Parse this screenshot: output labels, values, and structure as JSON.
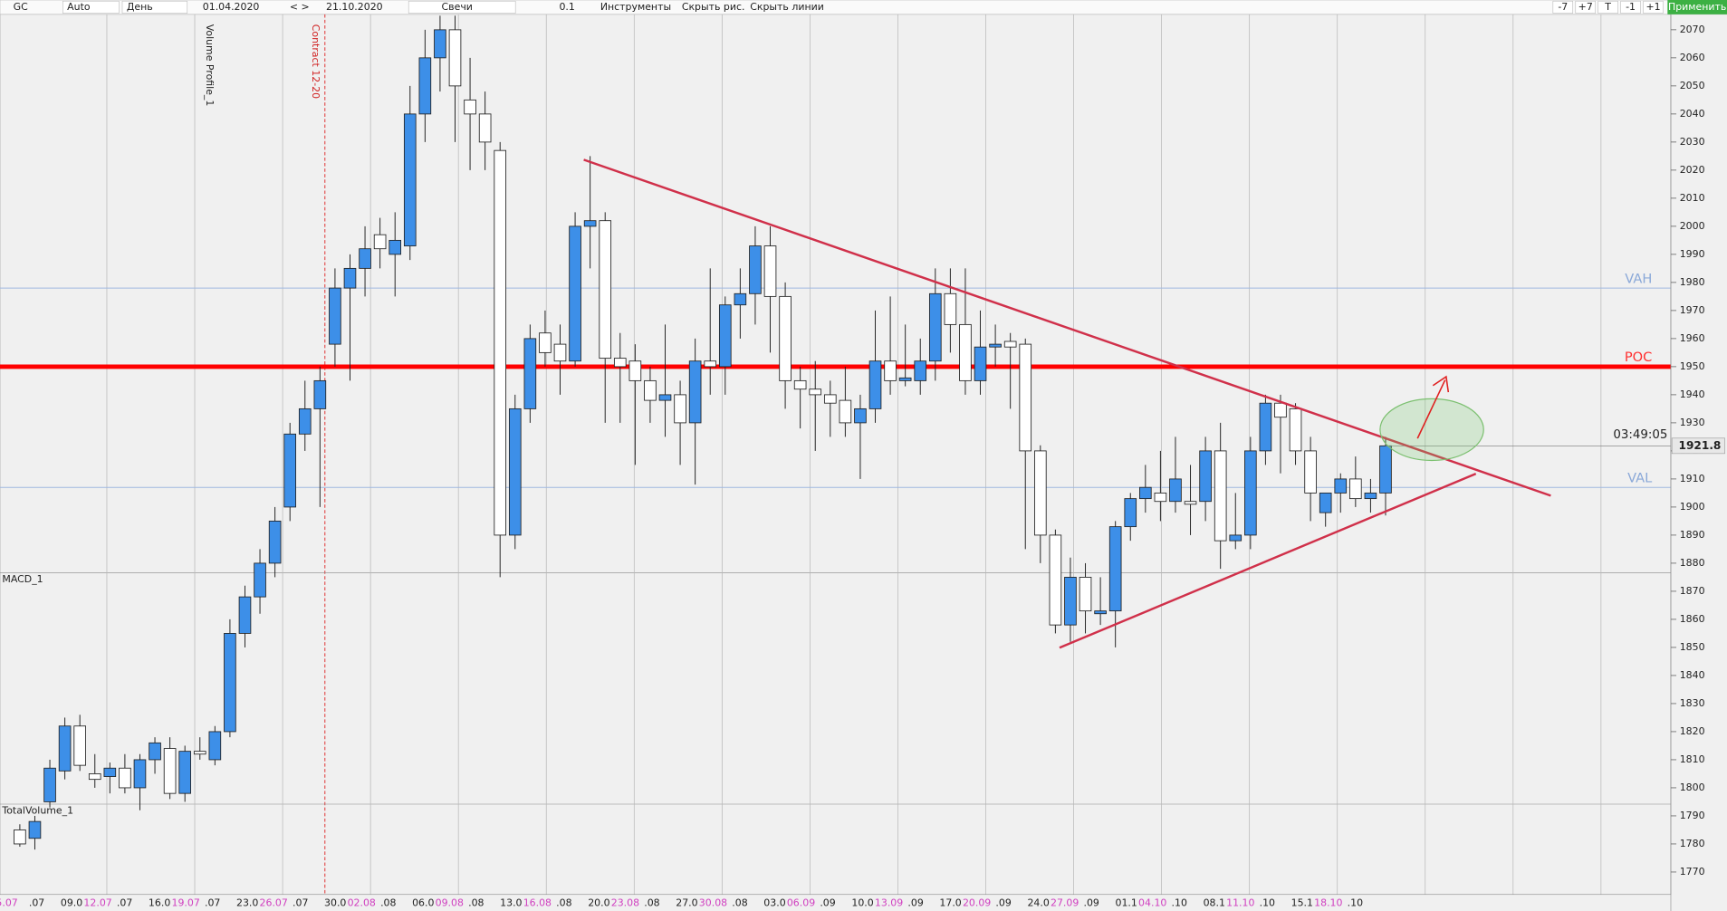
{
  "toolbar": {
    "symbol": "GC",
    "mode": "Auto",
    "period": "День",
    "date_from": "01.04.2020",
    "nav": "< >",
    "date_to": "21.10.2020",
    "chart_type": "Свечи",
    "step": "0.1",
    "tools": "Инструменты",
    "hide_drawings": "Скрыть рис.",
    "hide_lines": "Скрыть линии",
    "buttons": [
      "-7",
      "+7",
      "T",
      "-1",
      "+1"
    ],
    "apply": "Применить"
  },
  "chart_data": {
    "type": "candlestick",
    "candles": [
      [
        1785,
        1787,
        1779,
        1780
      ],
      [
        1782,
        1790,
        1778,
        1788
      ],
      [
        1795,
        1810,
        1793,
        1807
      ],
      [
        1806,
        1825,
        1803,
        1822
      ],
      [
        1822,
        1826,
        1806,
        1808
      ],
      [
        1805,
        1812,
        1800,
        1803
      ],
      [
        1804,
        1809,
        1798,
        1807
      ],
      [
        1807,
        1812,
        1798,
        1800
      ],
      [
        1800,
        1812,
        1792,
        1810
      ],
      [
        1810,
        1818,
        1805,
        1816
      ],
      [
        1814,
        1818,
        1796,
        1798
      ],
      [
        1798,
        1815,
        1795,
        1813
      ],
      [
        1813,
        1818,
        1810,
        1812
      ],
      [
        1810,
        1822,
        1808,
        1820
      ],
      [
        1820,
        1860,
        1818,
        1855
      ],
      [
        1855,
        1872,
        1850,
        1868
      ],
      [
        1868,
        1885,
        1862,
        1880
      ],
      [
        1880,
        1900,
        1875,
        1895
      ],
      [
        1900,
        1930,
        1895,
        1926
      ],
      [
        1926,
        1945,
        1920,
        1935
      ],
      [
        1935,
        1950,
        1900,
        1945
      ],
      [
        1958,
        1985,
        1950,
        1978
      ],
      [
        1978,
        1990,
        1945,
        1985
      ],
      [
        1985,
        2000,
        1975,
        1992
      ],
      [
        1997,
        2003,
        1985,
        1992
      ],
      [
        1990,
        2005,
        1975,
        1995
      ],
      [
        1993,
        2050,
        1988,
        2040
      ],
      [
        2040,
        2070,
        2030,
        2060
      ],
      [
        2060,
        2075,
        2048,
        2070
      ],
      [
        2070,
        2075,
        2030,
        2050
      ],
      [
        2045,
        2060,
        2020,
        2040
      ],
      [
        2040,
        2048,
        2020,
        2030
      ],
      [
        2027,
        2030,
        1875,
        1890
      ],
      [
        1890,
        1940,
        1885,
        1935
      ],
      [
        1935,
        1965,
        1930,
        1960
      ],
      [
        1962,
        1970,
        1950,
        1955
      ],
      [
        1958,
        1965,
        1940,
        1952
      ],
      [
        1952,
        2005,
        1950,
        2000
      ],
      [
        2000,
        2025,
        1985,
        2002
      ],
      [
        2002,
        2005,
        1930,
        1953
      ],
      [
        1953,
        1962,
        1930,
        1950
      ],
      [
        1952,
        1958,
        1915,
        1945
      ],
      [
        1945,
        1950,
        1930,
        1938
      ],
      [
        1938,
        1965,
        1925,
        1940
      ],
      [
        1940,
        1945,
        1915,
        1930
      ],
      [
        1930,
        1960,
        1908,
        1952
      ],
      [
        1952,
        1985,
        1940,
        1950
      ],
      [
        1950,
        1975,
        1940,
        1972
      ],
      [
        1972,
        1985,
        1960,
        1976
      ],
      [
        1976,
        2000,
        1965,
        1993
      ],
      [
        1993,
        2000,
        1955,
        1975
      ],
      [
        1975,
        1980,
        1935,
        1945
      ],
      [
        1945,
        1950,
        1928,
        1942
      ],
      [
        1942,
        1952,
        1920,
        1940
      ],
      [
        1940,
        1945,
        1925,
        1937
      ],
      [
        1938,
        1950,
        1925,
        1930
      ],
      [
        1930,
        1940,
        1910,
        1935
      ],
      [
        1935,
        1970,
        1930,
        1952
      ],
      [
        1952,
        1975,
        1940,
        1945
      ],
      [
        1945,
        1965,
        1943,
        1946
      ],
      [
        1945,
        1960,
        1940,
        1952
      ],
      [
        1952,
        1985,
        1945,
        1976
      ],
      [
        1976,
        1985,
        1955,
        1965
      ],
      [
        1965,
        1985,
        1940,
        1945
      ],
      [
        1945,
        1970,
        1940,
        1957
      ],
      [
        1957,
        1965,
        1950,
        1958
      ],
      [
        1959,
        1962,
        1935,
        1957
      ],
      [
        1958,
        1960,
        1885,
        1920
      ],
      [
        1920,
        1922,
        1880,
        1890
      ],
      [
        1890,
        1892,
        1855,
        1858
      ],
      [
        1858,
        1882,
        1852,
        1875
      ],
      [
        1875,
        1880,
        1855,
        1863
      ],
      [
        1862,
        1875,
        1858,
        1863
      ],
      [
        1863,
        1895,
        1850,
        1893
      ],
      [
        1893,
        1905,
        1888,
        1903
      ],
      [
        1903,
        1915,
        1898,
        1907
      ],
      [
        1905,
        1920,
        1895,
        1902
      ],
      [
        1902,
        1925,
        1898,
        1910
      ],
      [
        1902,
        1915,
        1890,
        1901
      ],
      [
        1902,
        1925,
        1895,
        1920
      ],
      [
        1920,
        1930,
        1878,
        1888
      ],
      [
        1888,
        1905,
        1885,
        1890
      ],
      [
        1890,
        1925,
        1885,
        1920
      ],
      [
        1920,
        1940,
        1915,
        1937
      ],
      [
        1937,
        1940,
        1912,
        1932
      ],
      [
        1935,
        1937,
        1915,
        1920
      ],
      [
        1920,
        1925,
        1895,
        1905
      ],
      [
        1898,
        1905,
        1893,
        1905
      ],
      [
        1905,
        1912,
        1898,
        1910
      ],
      [
        1910,
        1918,
        1900,
        1903
      ],
      [
        1903,
        1910,
        1898,
        1905
      ],
      [
        1905,
        1925,
        1897,
        1921.8
      ]
    ],
    "up_color": "#3d8fe8",
    "down_color": "#ffffff",
    "ylim": [
      1762,
      2075.5
    ],
    "yticks": [
      1770,
      1780,
      1790,
      1800,
      1810,
      1820,
      1830,
      1840,
      1850,
      1860,
      1870,
      1880,
      1890,
      1900,
      1910,
      1920,
      1930,
      1940,
      1950,
      1960,
      1970,
      1980,
      1990,
      2000,
      2010,
      2020,
      2030,
      2040,
      2050,
      2060,
      2070
    ],
    "levels": [
      {
        "label": "VAH",
        "value": 1978,
        "color": "#9fb8e0"
      },
      {
        "label": "POC",
        "value": 1950,
        "color": "#ff0000"
      },
      {
        "label": "VAL",
        "value": 1907,
        "color": "#9fb8e0"
      }
    ],
    "last_price": 1921.8,
    "timer": "03:49:05",
    "indicators": [
      "Volume Profile_1",
      "MACD_1",
      "TotalVolume_1"
    ],
    "contract": "Contract 12-20",
    "week_labels": [
      {
        "mid": "5.07",
        "end": ".07"
      },
      {
        "start": "09.0",
        "mid": "12.07",
        "end": ".07"
      },
      {
        "start": "16.0",
        "mid": "19.07",
        "end": ".07"
      },
      {
        "start": "23.0",
        "mid": "26.07",
        "end": ".07"
      },
      {
        "start": "30.0",
        "mid": "02.08",
        "end": ".08"
      },
      {
        "start": "06.0",
        "mid": "09.08",
        "end": ".08"
      },
      {
        "start": "13.0",
        "mid": "16.08",
        "end": ".08"
      },
      {
        "start": "20.0",
        "mid": "23.08",
        "end": ".08"
      },
      {
        "start": "27.0",
        "mid": "30.08",
        "end": ".08"
      },
      {
        "start": "03.0",
        "mid": "06.09",
        "end": ".09"
      },
      {
        "start": "10.0",
        "mid": "13.09",
        "end": ".09"
      },
      {
        "start": "17.0",
        "mid": "20.09",
        "end": ".09"
      },
      {
        "start": "24.0",
        "mid": "27.09",
        "end": ".09"
      },
      {
        "start": "01.1",
        "mid": "04.10",
        "end": ".10"
      },
      {
        "start": "08.1",
        "mid": "11.10",
        "end": ".10"
      },
      {
        "start": "15.1",
        "mid": "18.10",
        "end": ".10"
      }
    ]
  }
}
